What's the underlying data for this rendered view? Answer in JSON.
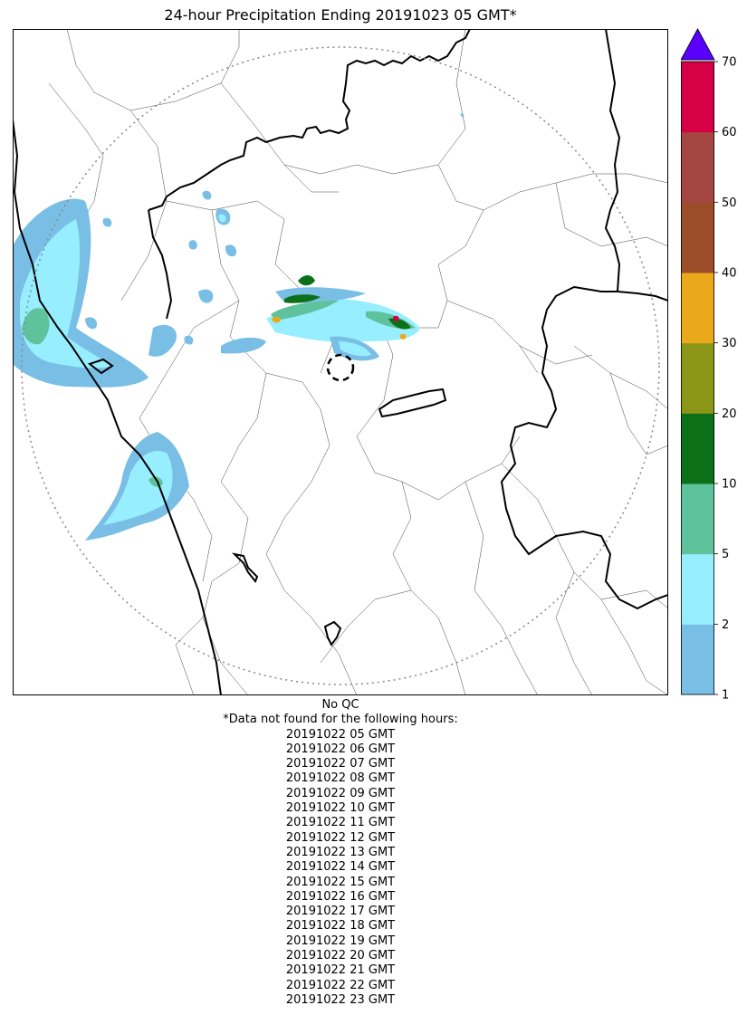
{
  "title": "24-hour Precipitation Ending 20191023 05 GMT*",
  "colorbar": {
    "levels": [
      {
        "label": "1",
        "color": "#79bee5"
      },
      {
        "label": "2",
        "color": "#97eefe"
      },
      {
        "label": "5",
        "color": "#5ec39c"
      },
      {
        "label": "10",
        "color": "#0c7019"
      },
      {
        "label": "20",
        "color": "#8b9618"
      },
      {
        "label": "30",
        "color": "#e9a91b"
      },
      {
        "label": "40",
        "color": "#9b4c28"
      },
      {
        "label": "50",
        "color": "#a44742"
      },
      {
        "label": "60",
        "color": "#d50046"
      },
      {
        "label": "70",
        "color": ""
      }
    ],
    "extend_color": "#5a00ff"
  },
  "colors": {
    "light_blue": "#79bee5",
    "cyan": "#97eefe",
    "teal": "#5ec39c",
    "dark_green": "#0c7019",
    "olive": "#8b9618",
    "orange": "#e9a91b",
    "brown": "#9b4c28",
    "red_brown": "#a44742",
    "crimson": "#d50046",
    "range_ring": "#888888",
    "borders": "#000000"
  },
  "footer": {
    "qc_status": "No QC",
    "note": "*Data not found for the following hours:",
    "missing_hours": [
      "20191022 05 GMT",
      "20191022 06 GMT",
      "20191022 07 GMT",
      "20191022 08 GMT",
      "20191022 09 GMT",
      "20191022 10 GMT",
      "20191022 11 GMT",
      "20191022 12 GMT",
      "20191022 13 GMT",
      "20191022 14 GMT",
      "20191022 15 GMT",
      "20191022 16 GMT",
      "20191022 17 GMT",
      "20191022 18 GMT",
      "20191022 19 GMT",
      "20191022 20 GMT",
      "20191022 21 GMT",
      "20191022 22 GMT",
      "20191022 23 GMT"
    ]
  }
}
